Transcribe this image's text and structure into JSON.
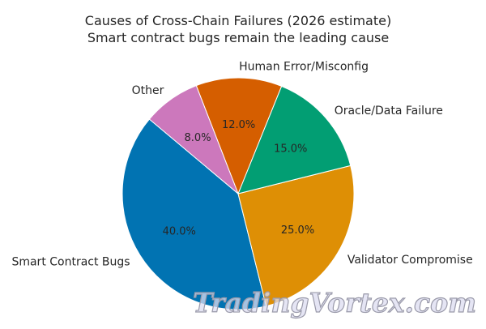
{
  "chart_data": {
    "type": "pie",
    "title": "Causes of Cross-Chain Failures (2026 estimate)",
    "subtitle": "Smart contract bugs remain the leading cause",
    "start_angle_deg": 140,
    "direction": "counterclockwise",
    "slices": [
      {
        "label": "Smart Contract Bugs",
        "value": 40.0,
        "pct_label": "40.0%",
        "color": "#0173b2"
      },
      {
        "label": "Validator Compromise",
        "value": 25.0,
        "pct_label": "25.0%",
        "color": "#de8f05"
      },
      {
        "label": "Oracle/Data Failure",
        "value": 15.0,
        "pct_label": "15.0%",
        "color": "#029e73"
      },
      {
        "label": "Human Error/Misconfig",
        "value": 12.0,
        "pct_label": "12.0%",
        "color": "#d55e00"
      },
      {
        "label": "Other",
        "value": 8.0,
        "pct_label": "8.0%",
        "color": "#cc78bc"
      }
    ]
  },
  "watermark": "TradingVortex.com"
}
